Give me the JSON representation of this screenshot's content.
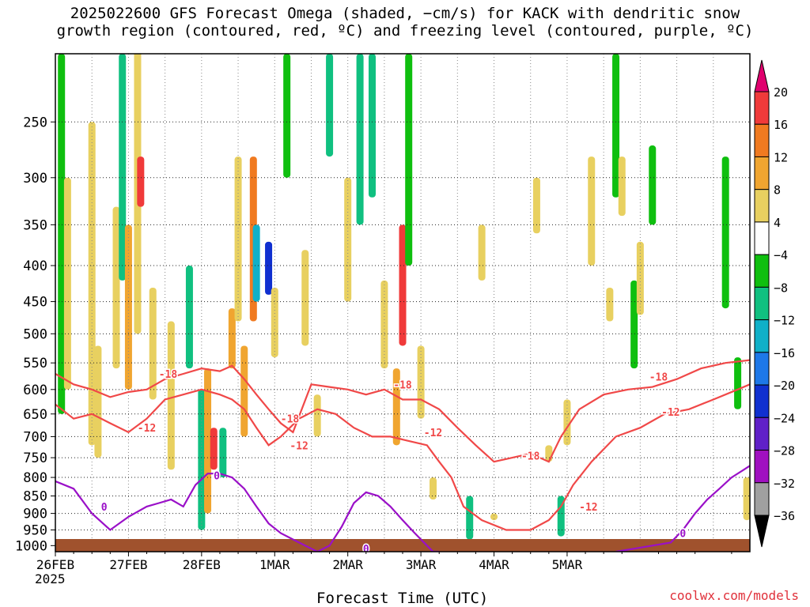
{
  "title_line1": "2025022600 GFS Forecast Omega (shaded, −cm/s) for KACK with dendritic snow",
  "title_line2": "growth region (contoured, red, ºC) and freezing level (contoured, purple, ºC)",
  "credit": "coolwx.com/models",
  "chart_data": {
    "type": "heatmap",
    "xlabel": "Forecast Time (UTC)",
    "ylabel": "",
    "x_ticks": [
      "26FEB",
      "27FEB",
      "28FEB",
      "1MAR",
      "2MAR",
      "3MAR",
      "4MAR",
      "5MAR"
    ],
    "x_year_label": "2025",
    "x_range_hours": [
      0,
      228
    ],
    "y_ticks": [
      250,
      300,
      350,
      400,
      450,
      500,
      550,
      600,
      650,
      700,
      750,
      800,
      850,
      900,
      950,
      1000
    ],
    "y_range_hPa": [
      200,
      1020
    ],
    "y_scale": "log-pressure",
    "grid": "dotted",
    "colorbar": {
      "labels": [
        "20",
        "16",
        "12",
        "8",
        "4",
        "−4",
        "−8",
        "−12",
        "−16",
        "−20",
        "−24",
        "−28",
        "−32",
        "−36"
      ],
      "bands": [
        {
          "from": 20,
          "color": "#e0006e",
          "end": "arrow"
        },
        {
          "from": 16,
          "to": 20,
          "color": "#f03a3a"
        },
        {
          "from": 12,
          "to": 16,
          "color": "#f07a20"
        },
        {
          "from": 8,
          "to": 12,
          "color": "#f0a530"
        },
        {
          "from": 4,
          "to": 8,
          "color": "#e8d060"
        },
        {
          "from": -4,
          "to": 4,
          "color": "#ffffff"
        },
        {
          "from": -8,
          "to": -4,
          "color": "#0fbf0f"
        },
        {
          "from": -12,
          "to": -8,
          "color": "#10c080"
        },
        {
          "from": -16,
          "to": -12,
          "color": "#10b0c8"
        },
        {
          "from": -20,
          "to": -16,
          "color": "#1e78e8"
        },
        {
          "from": -24,
          "to": -20,
          "color": "#1030d0"
        },
        {
          "from": -28,
          "to": -24,
          "color": "#6020c8"
        },
        {
          "from": -32,
          "to": -28,
          "color": "#a010c0"
        },
        {
          "from": -36,
          "to": -32,
          "color": "#a0a0a0"
        },
        {
          "to": -36,
          "color": "#000000",
          "end": "arrow"
        }
      ]
    },
    "omega_patches": [
      {
        "hour": 2,
        "p_top": 200,
        "p_bot": 650,
        "value": -8
      },
      {
        "hour": 4,
        "p_top": 300,
        "p_bot": 600,
        "value": 5
      },
      {
        "hour": 12,
        "p_top": 250,
        "p_bot": 720,
        "value": 6
      },
      {
        "hour": 14,
        "p_top": 520,
        "p_bot": 750,
        "value": 5
      },
      {
        "hour": 20,
        "p_top": 330,
        "p_bot": 560,
        "value": 6
      },
      {
        "hour": 22,
        "p_top": 200,
        "p_bot": 420,
        "value": -10
      },
      {
        "hour": 24,
        "p_top": 350,
        "p_bot": 600,
        "value": 9
      },
      {
        "hour": 27,
        "p_top": 150,
        "p_bot": 500,
        "value": 7
      },
      {
        "hour": 28,
        "p_top": 280,
        "p_bot": 330,
        "value": 18
      },
      {
        "hour": 32,
        "p_top": 430,
        "p_bot": 620,
        "value": 6
      },
      {
        "hour": 38,
        "p_top": 480,
        "p_bot": 780,
        "value": 5
      },
      {
        "hour": 44,
        "p_top": 400,
        "p_bot": 560,
        "value": -9
      },
      {
        "hour": 48,
        "p_top": 600,
        "p_bot": 950,
        "value": -9
      },
      {
        "hour": 50,
        "p_top": 560,
        "p_bot": 900,
        "value": 8
      },
      {
        "hour": 52,
        "p_top": 680,
        "p_bot": 780,
        "value": 18
      },
      {
        "hour": 55,
        "p_top": 680,
        "p_bot": 800,
        "value": -10
      },
      {
        "hour": 58,
        "p_top": 460,
        "p_bot": 560,
        "value": 8
      },
      {
        "hour": 60,
        "p_top": 280,
        "p_bot": 480,
        "value": 6
      },
      {
        "hour": 62,
        "p_top": 520,
        "p_bot": 700,
        "value": 8
      },
      {
        "hour": 65,
        "p_top": 280,
        "p_bot": 480,
        "value": 12
      },
      {
        "hour": 66,
        "p_top": 350,
        "p_bot": 450,
        "value": -14
      },
      {
        "hour": 70,
        "p_top": 370,
        "p_bot": 440,
        "value": -24
      },
      {
        "hour": 72,
        "p_top": 430,
        "p_bot": 540,
        "value": 6
      },
      {
        "hour": 76,
        "p_top": 200,
        "p_bot": 300,
        "value": -8
      },
      {
        "hour": 82,
        "p_top": 380,
        "p_bot": 520,
        "value": 5
      },
      {
        "hour": 86,
        "p_top": 610,
        "p_bot": 700,
        "value": 6
      },
      {
        "hour": 90,
        "p_top": 200,
        "p_bot": 280,
        "value": -9
      },
      {
        "hour": 96,
        "p_top": 300,
        "p_bot": 450,
        "value": 6
      },
      {
        "hour": 100,
        "p_top": 200,
        "p_bot": 350,
        "value": -9
      },
      {
        "hour": 104,
        "p_top": 200,
        "p_bot": 320,
        "value": -12
      },
      {
        "hour": 108,
        "p_top": 420,
        "p_bot": 560,
        "value": 5
      },
      {
        "hour": 112,
        "p_top": 560,
        "p_bot": 720,
        "value": 9
      },
      {
        "hour": 114,
        "p_top": 350,
        "p_bot": 520,
        "value": 16
      },
      {
        "hour": 116,
        "p_top": 200,
        "p_bot": 400,
        "value": -8
      },
      {
        "hour": 120,
        "p_top": 520,
        "p_bot": 660,
        "value": 6
      },
      {
        "hour": 124,
        "p_top": 800,
        "p_bot": 860,
        "value": 5
      },
      {
        "hour": 136,
        "p_top": 850,
        "p_bot": 980,
        "value": -12
      },
      {
        "hour": 140,
        "p_top": 350,
        "p_bot": 420,
        "value": 5
      },
      {
        "hour": 144,
        "p_top": 900,
        "p_bot": 920,
        "value": 5
      },
      {
        "hour": 158,
        "p_top": 300,
        "p_bot": 360,
        "value": 5
      },
      {
        "hour": 162,
        "p_top": 720,
        "p_bot": 760,
        "value": 5
      },
      {
        "hour": 166,
        "p_top": 850,
        "p_bot": 970,
        "value": -12
      },
      {
        "hour": 168,
        "p_top": 620,
        "p_bot": 720,
        "value": 5
      },
      {
        "hour": 176,
        "p_top": 280,
        "p_bot": 400,
        "value": 7
      },
      {
        "hour": 182,
        "p_top": 430,
        "p_bot": 480,
        "value": 5
      },
      {
        "hour": 184,
        "p_top": 200,
        "p_bot": 320,
        "value": -8
      },
      {
        "hour": 186,
        "p_top": 280,
        "p_bot": 340,
        "value": 5
      },
      {
        "hour": 190,
        "p_top": 420,
        "p_bot": 560,
        "value": -8
      },
      {
        "hour": 192,
        "p_top": 370,
        "p_bot": 470,
        "value": 5
      },
      {
        "hour": 196,
        "p_top": 270,
        "p_bot": 350,
        "value": -8
      },
      {
        "hour": 220,
        "p_top": 280,
        "p_bot": 460,
        "value": -8
      },
      {
        "hour": 224,
        "p_top": 540,
        "p_bot": 640,
        "value": -8
      },
      {
        "hour": 227,
        "p_top": 800,
        "p_bot": 920,
        "value": 5
      }
    ],
    "series": [
      {
        "name": "-18",
        "color": "#f04848",
        "x": [
          0,
          6,
          12,
          18,
          24,
          30,
          36,
          42,
          48,
          54,
          58,
          62,
          66,
          70,
          74,
          78,
          84,
          90,
          96,
          102,
          108,
          114,
          120,
          126,
          132,
          138,
          144,
          150,
          156,
          162,
          166,
          172,
          180,
          188,
          196,
          204,
          212,
          220,
          228
        ],
        "p": [
          570,
          590,
          600,
          615,
          605,
          600,
          580,
          570,
          560,
          565,
          555,
          580,
          610,
          640,
          670,
          690,
          590,
          595,
          600,
          610,
          600,
          620,
          620,
          640,
          680,
          720,
          760,
          750,
          740,
          760,
          700,
          640,
          610,
          600,
          595,
          580,
          560,
          550,
          545
        ]
      },
      {
        "name": "-12",
        "color": "#f04848",
        "x": [
          0,
          6,
          12,
          18,
          24,
          30,
          36,
          42,
          48,
          54,
          58,
          62,
          66,
          70,
          74,
          80,
          86,
          92,
          98,
          104,
          110,
          116,
          122,
          126,
          130,
          134,
          140,
          148,
          156,
          162,
          166,
          170,
          176,
          184,
          192,
          200,
          208,
          216,
          224,
          228
        ],
        "p": [
          630,
          660,
          650,
          670,
          690,
          660,
          620,
          610,
          600,
          610,
          620,
          640,
          680,
          720,
          700,
          660,
          640,
          650,
          680,
          700,
          700,
          710,
          720,
          760,
          800,
          880,
          920,
          950,
          950,
          920,
          880,
          820,
          760,
          700,
          680,
          650,
          640,
          620,
          600,
          590
        ]
      },
      {
        "name": "0",
        "color": "#9a10c8",
        "x": [
          0,
          6,
          12,
          18,
          24,
          30,
          34,
          38,
          42,
          46,
          50,
          54,
          58,
          62,
          66,
          70,
          74,
          78,
          82,
          86,
          90,
          94,
          98,
          102,
          106,
          110,
          114,
          118,
          122,
          124,
          126
        ],
        "p": [
          810,
          830,
          900,
          950,
          910,
          880,
          870,
          860,
          880,
          820,
          790,
          790,
          800,
          830,
          880,
          930,
          960,
          980,
          1000,
          1020,
          1000,
          940,
          870,
          840,
          850,
          880,
          920,
          960,
          1000,
          1020,
          1020
        ]
      },
      {
        "name": "0",
        "color": "#9a10c8",
        "x": [
          184,
          190,
          196,
          202,
          206,
          210,
          214,
          218,
          222,
          226,
          228
        ],
        "p": [
          1020,
          1010,
          1000,
          990,
          950,
          900,
          860,
          830,
          800,
          780,
          770
        ]
      }
    ],
    "contour_labels": [
      {
        "text": "-18",
        "hour": 37,
        "p": 570,
        "color": "#f04848"
      },
      {
        "text": "-12",
        "hour": 30,
        "p": 680,
        "color": "#f04848"
      },
      {
        "text": "-18",
        "hour": 77,
        "p": 660,
        "color": "#f04848"
      },
      {
        "text": "-12",
        "hour": 80,
        "p": 720,
        "color": "#f04848"
      },
      {
        "text": "-18",
        "hour": 114,
        "p": 590,
        "color": "#f04848"
      },
      {
        "text": "-12",
        "hour": 124,
        "p": 690,
        "color": "#f04848"
      },
      {
        "text": "-18",
        "hour": 156,
        "p": 745,
        "color": "#f04848"
      },
      {
        "text": "-12",
        "hour": 175,
        "p": 880,
        "color": "#f04848"
      },
      {
        "text": "-18",
        "hour": 198,
        "p": 575,
        "color": "#f04848"
      },
      {
        "text": "-12",
        "hour": 202,
        "p": 645,
        "color": "#f04848"
      },
      {
        "text": "0",
        "hour": 53,
        "p": 795,
        "color": "#9a10c8"
      },
      {
        "text": "0",
        "hour": 16,
        "p": 880,
        "color": "#9a10c8"
      },
      {
        "text": "0",
        "hour": 102,
        "p": 1010,
        "color": "#9a10c8"
      },
      {
        "text": "0",
        "hour": 206,
        "p": 960,
        "color": "#9a10c8"
      }
    ],
    "terrain_color": "#a0522d"
  }
}
